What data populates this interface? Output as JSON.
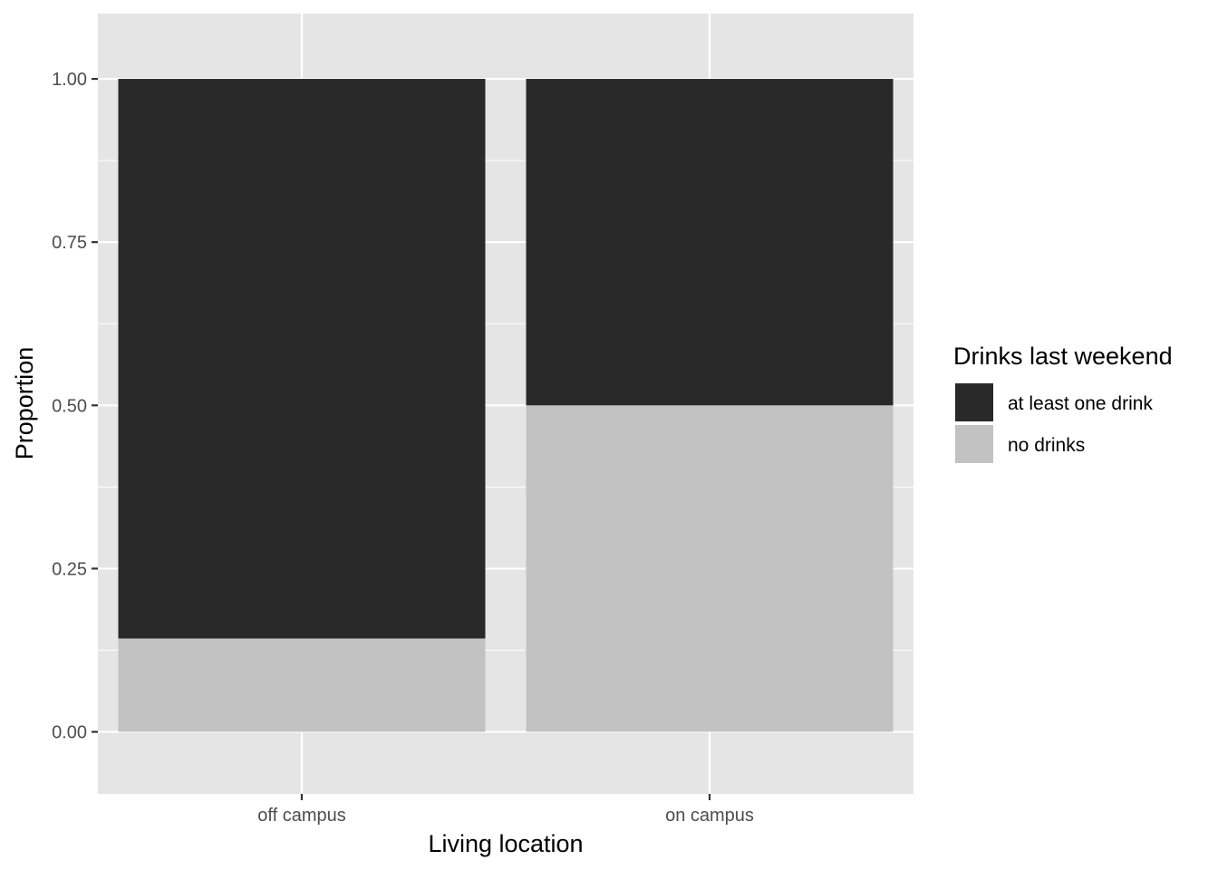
{
  "chart_data": {
    "type": "bar",
    "stacked": true,
    "categories": [
      "off campus",
      "on campus"
    ],
    "series": [
      {
        "name": "no drinks",
        "values": [
          0.143,
          0.5
        ],
        "color": "#c2c2c2"
      },
      {
        "name": "at least one drink",
        "values": [
          0.857,
          0.5
        ],
        "color": "#292929"
      }
    ],
    "title": "",
    "xlabel": "Living location",
    "ylabel": "Proportion",
    "ylim": [
      -0.095,
      1.1
    ],
    "yticks": [
      0,
      0.25,
      0.5,
      0.75,
      1
    ],
    "ytick_labels": [
      "0.00",
      "0.25",
      "0.50",
      "0.75",
      "1.00"
    ],
    "grid": true,
    "legend": {
      "title": "Drinks last weekend",
      "placement": "right",
      "entries": [
        "at least one drink",
        "no drinks"
      ]
    },
    "colors": {
      "panel": "#e5e5e5",
      "grid": "#ffffff"
    }
  }
}
